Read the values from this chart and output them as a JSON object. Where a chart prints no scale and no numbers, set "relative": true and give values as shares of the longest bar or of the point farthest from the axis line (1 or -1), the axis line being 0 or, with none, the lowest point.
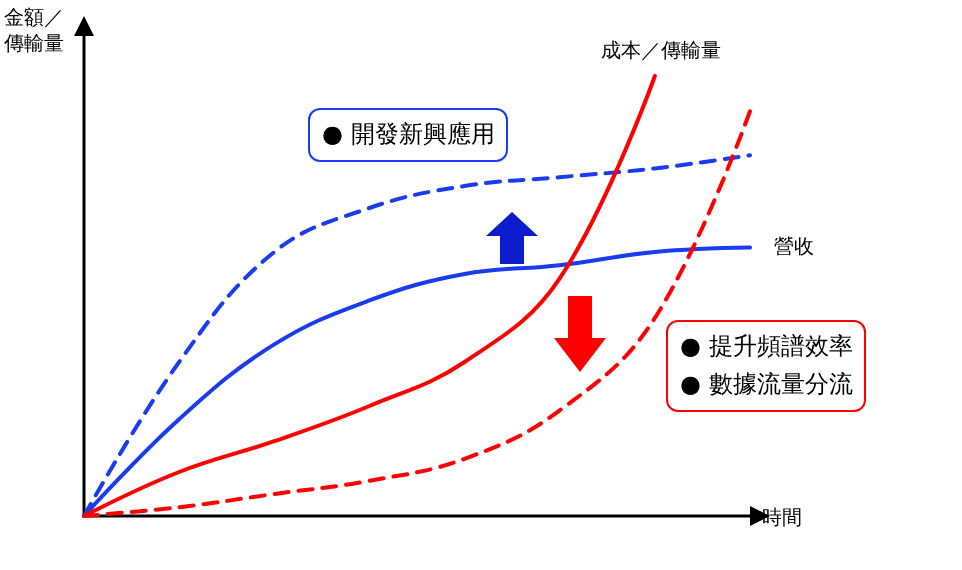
{
  "chart_data": {
    "type": "line",
    "relative": true,
    "xlabel": "時間",
    "ylabel": "金額／傳輸量",
    "categories": [
      null,
      null,
      null,
      null,
      null,
      null,
      null,
      null
    ],
    "series": [
      {
        "name": "營收",
        "color": "#1a3cf0",
        "line_style": "solid",
        "values": [
          0,
          0.22,
          0.39,
          0.49,
          0.55,
          0.57,
          0.6,
          0.61
        ]
      },
      {
        "color": "#1a3cf0",
        "line_style": "dashed",
        "values": [
          0,
          0.35,
          0.6,
          0.7,
          0.75,
          0.77,
          0.79,
          0.82
        ]
      },
      {
        "name": "成本／傳輸量",
        "color": "#ff0000",
        "line_style": "solid",
        "values": [
          0,
          0.1,
          0.17,
          0.25,
          0.35,
          0.54,
          1,
          null
        ]
      },
      {
        "color": "#ff0000",
        "line_style": "dashed",
        "values": [
          0,
          0.02,
          0.05,
          0.08,
          0.13,
          0.24,
          0.45,
          0.92
        ]
      }
    ],
    "annotations": [
      "● 開發新興應用",
      "● 提升頻譜效率",
      "● 數據流量分流"
    ],
    "marker": "none",
    "grid": false,
    "legend": false
  }
}
